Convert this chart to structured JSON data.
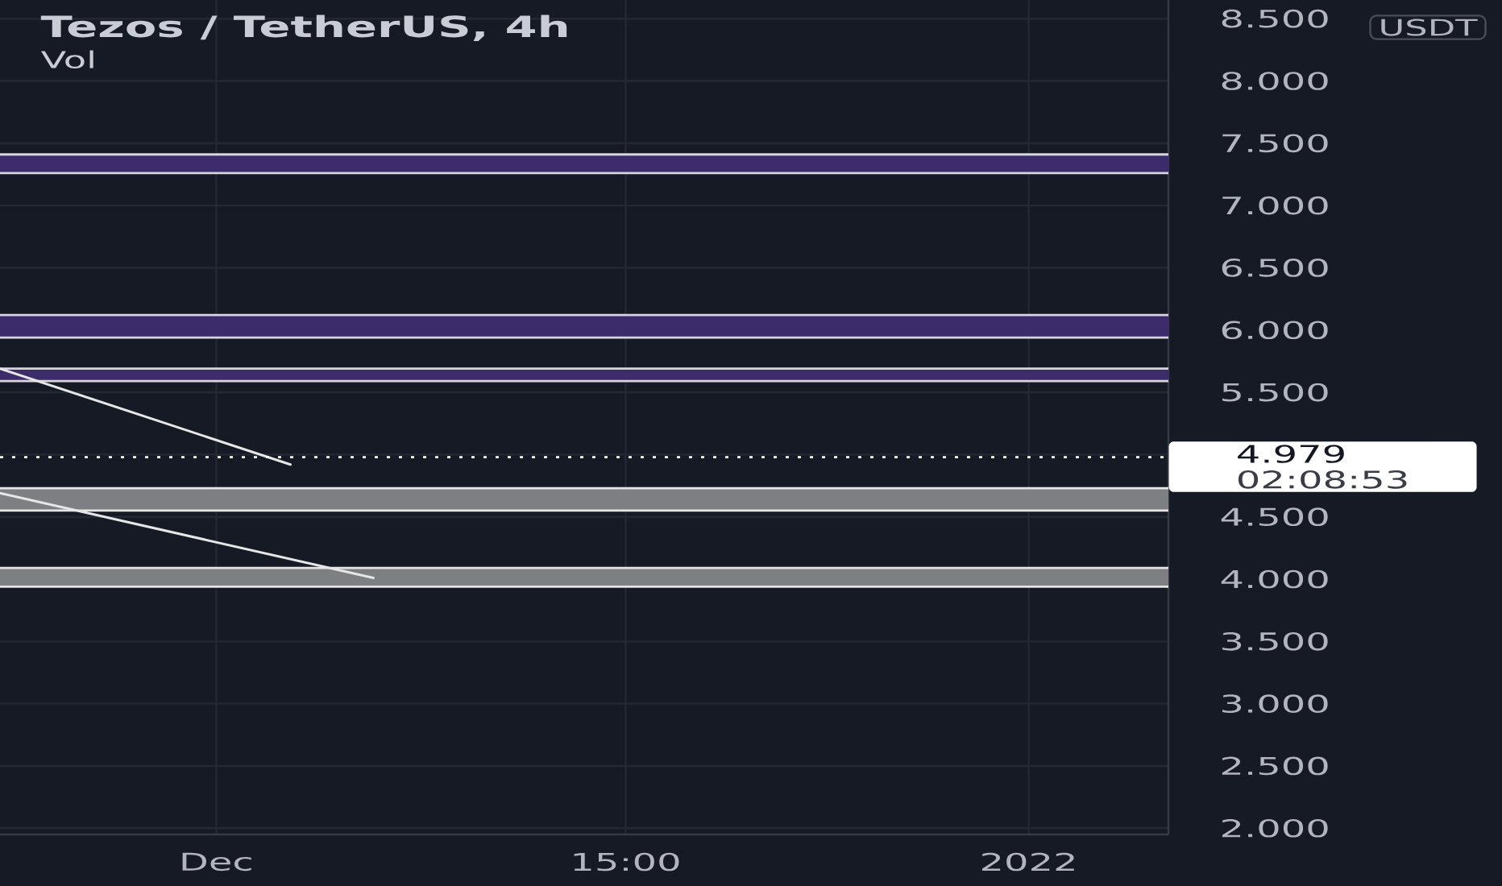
{
  "chart_data": {
    "type": "line",
    "title": "Tezos / TetherUS, 4h",
    "subtitle": "Vol",
    "ylabel": "USDT",
    "xlim": [
      "2021-11-22T18:00",
      "2022-01-06T08:00"
    ],
    "xticks": [
      {
        "value": "2021-12-01",
        "label": "Dec"
      },
      {
        "value": "2021-12-16T15:00",
        "label": "15:00"
      },
      {
        "value": "2022-01-01",
        "label": "2022"
      }
    ],
    "ylim": [
      1.95,
      8.65
    ],
    "yticks": [
      {
        "value": 2,
        "label": "2.000"
      },
      {
        "value": 2.5,
        "label": "2.500"
      },
      {
        "value": 3,
        "label": "3.000"
      },
      {
        "value": 3.5,
        "label": "3.500"
      },
      {
        "value": 4,
        "label": "4.000"
      },
      {
        "value": 4.5,
        "label": "4.500"
      },
      {
        "value": 5,
        "label": null
      },
      {
        "value": 5.5,
        "label": "5.500"
      },
      {
        "value": 6,
        "label": "6.000"
      },
      {
        "value": 6.5,
        "label": "6.500"
      },
      {
        "value": 7,
        "label": "7.000"
      },
      {
        "value": 7.5,
        "label": "7.500"
      },
      {
        "value": 8,
        "label": "8.000"
      },
      {
        "value": 8.5,
        "label": "8.500"
      }
    ],
    "grid": true,
    "series": [
      {
        "color": "#e6e6e6",
        "x": [
          "2021-11-22T18:00",
          "2021-12-03T20:00"
        ],
        "values": [
          5.69,
          4.92
        ]
      },
      {
        "color": "#e6e6e6",
        "x": [
          "2021-11-22T18:00",
          "2021-12-07T00:00"
        ],
        "values": [
          4.69,
          4.01
        ]
      }
    ],
    "bands": [
      {
        "axis": "y",
        "from": 7.26,
        "to": 7.41,
        "color": "#3d2c6b"
      },
      {
        "axis": "y",
        "from": 5.94,
        "to": 6.12,
        "color": "#3d2c6b"
      },
      {
        "axis": "y",
        "from": 5.59,
        "to": 5.69,
        "color": "#3d2c6b"
      },
      {
        "axis": "y",
        "from": 4.55,
        "to": 4.73,
        "color": "#7e7f83"
      },
      {
        "axis": "y",
        "from": 3.94,
        "to": 4.09,
        "color": "#7e7f83"
      }
    ],
    "ref_lines": [
      {
        "axis": "y",
        "value": 4.979,
        "label": "4.979",
        "color": "#ffffff",
        "line_style": "dotted"
      }
    ],
    "annotations": [
      "02:08:53"
    ]
  }
}
